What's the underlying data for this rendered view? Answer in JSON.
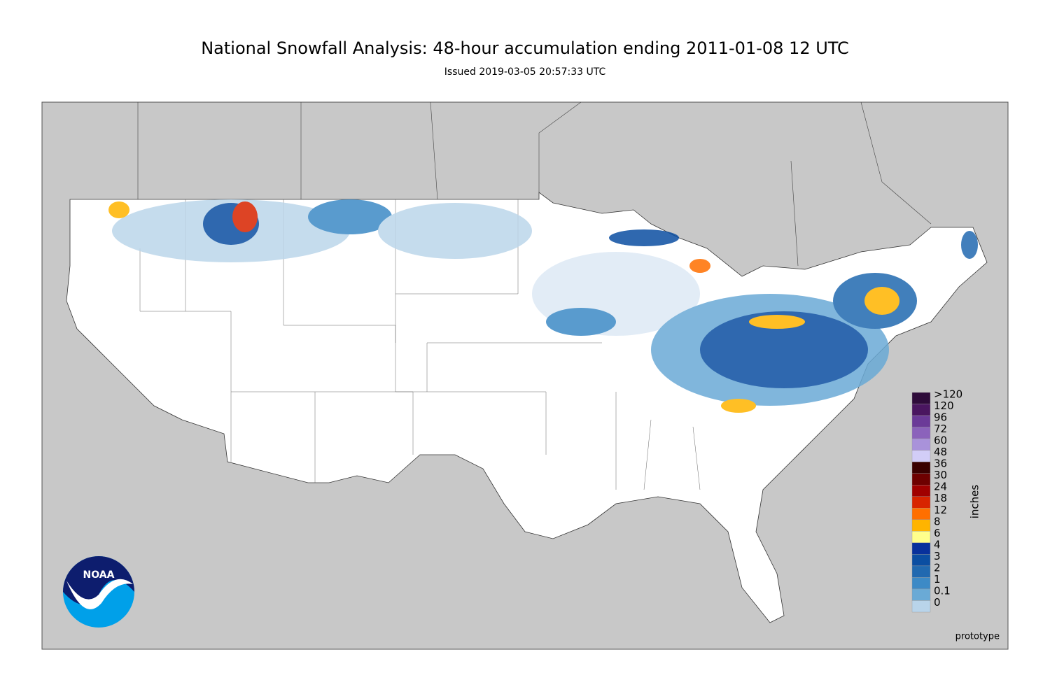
{
  "header": {
    "title": "National Snowfall Analysis: 48-hour accumulation ending 2011-01-08 12 UTC",
    "subtitle": "Issued 2019-03-05 20:57:33 UTC"
  },
  "legend": {
    "title": "inches",
    "levels": [
      {
        "label": ">120",
        "color": "#2e0b3a"
      },
      {
        "label": "120",
        "color": "#4a1660"
      },
      {
        "label": "96",
        "color": "#6b3a98"
      },
      {
        "label": "72",
        "color": "#8b62bb"
      },
      {
        "label": "60",
        "color": "#a992da"
      },
      {
        "label": "48",
        "color": "#d2cdf7"
      },
      {
        "label": "36",
        "color": "#3a0000"
      },
      {
        "label": "30",
        "color": "#6e0000"
      },
      {
        "label": "24",
        "color": "#a00000"
      },
      {
        "label": "18",
        "color": "#d82400"
      },
      {
        "label": "12",
        "color": "#ff6f00"
      },
      {
        "label": "8",
        "color": "#ffb400"
      },
      {
        "label": "6",
        "color": "#ffff8c"
      },
      {
        "label": "4",
        "color": "#08319c"
      },
      {
        "label": "3",
        "color": "#0b4ea2"
      },
      {
        "label": "2",
        "color": "#2169b0"
      },
      {
        "label": "1",
        "color": "#3d8ac6"
      },
      {
        "label": "0.1",
        "color": "#6aaad6"
      },
      {
        "label": "0",
        "color": "#b9d4ea"
      }
    ]
  },
  "footer": {
    "note": "prototype",
    "logo": "NOAA"
  }
}
